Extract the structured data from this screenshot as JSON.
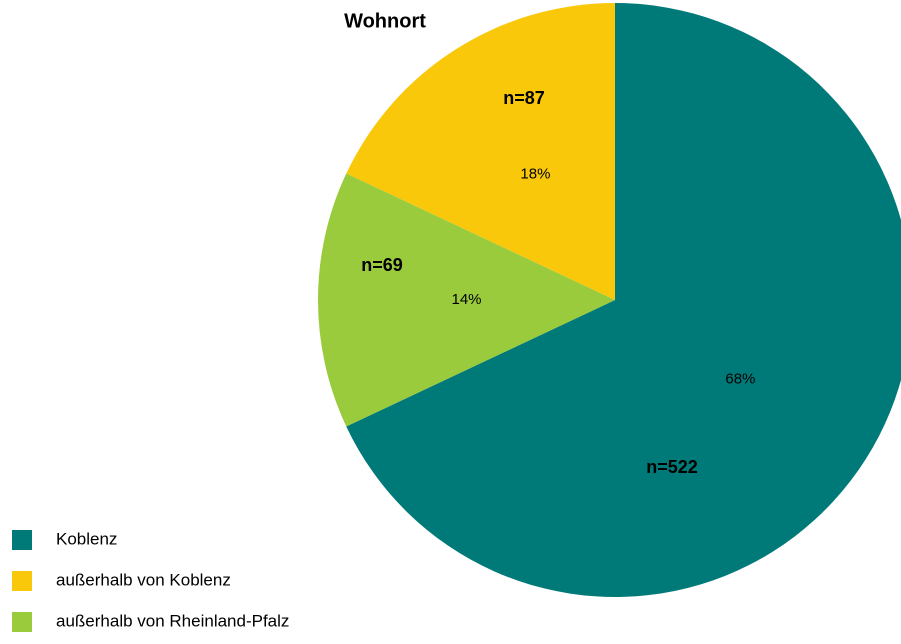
{
  "chart_data": {
    "type": "pie",
    "title": "Wohnort",
    "categories": [
      "Koblenz",
      "außerhalb von Koblenz",
      "außerhalb von Rheinland-Pfalz"
    ],
    "values": [
      68,
      18,
      14
    ],
    "value_labels": [
      "68%",
      "18%",
      "14%"
    ],
    "annotations": [
      "n=522",
      "n=87",
      "n=69"
    ],
    "colors": [
      "#007a78",
      "#fac80a",
      "#9acb3c"
    ],
    "legend": "bottom-left"
  }
}
